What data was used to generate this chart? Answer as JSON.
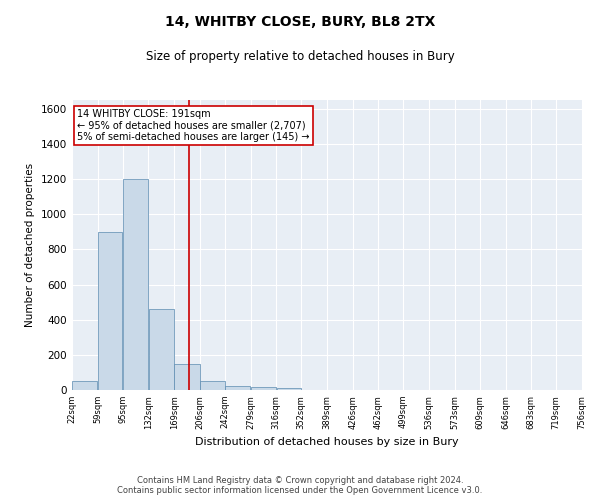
{
  "title": "14, WHITBY CLOSE, BURY, BL8 2TX",
  "subtitle": "Size of property relative to detached houses in Bury",
  "xlabel": "Distribution of detached houses by size in Bury",
  "ylabel": "Number of detached properties",
  "footer1": "Contains HM Land Registry data © Crown copyright and database right 2024.",
  "footer2": "Contains public sector information licensed under the Open Government Licence v3.0.",
  "annotation_line1": "14 WHITBY CLOSE: 191sqm",
  "annotation_line2": "← 95% of detached houses are smaller (2,707)",
  "annotation_line3": "5% of semi-detached houses are larger (145) →",
  "vline_x": 191,
  "bar_edges": [
    22,
    59,
    95,
    132,
    169,
    206,
    242,
    279,
    316,
    352,
    389,
    426,
    462,
    499,
    536,
    573,
    609,
    646,
    683,
    719,
    756
  ],
  "bar_heights": [
    50,
    900,
    1200,
    460,
    150,
    50,
    25,
    15,
    10,
    0,
    0,
    0,
    0,
    0,
    0,
    0,
    0,
    0,
    0,
    0
  ],
  "bar_color": "#c9d9e8",
  "bar_edgecolor": "#5a8ab0",
  "vline_color": "#cc0000",
  "annotation_box_color": "#cc0000",
  "background_color": "#e8eef5",
  "ylim": [
    0,
    1650
  ],
  "yticks": [
    0,
    200,
    400,
    600,
    800,
    1000,
    1200,
    1400,
    1600
  ]
}
